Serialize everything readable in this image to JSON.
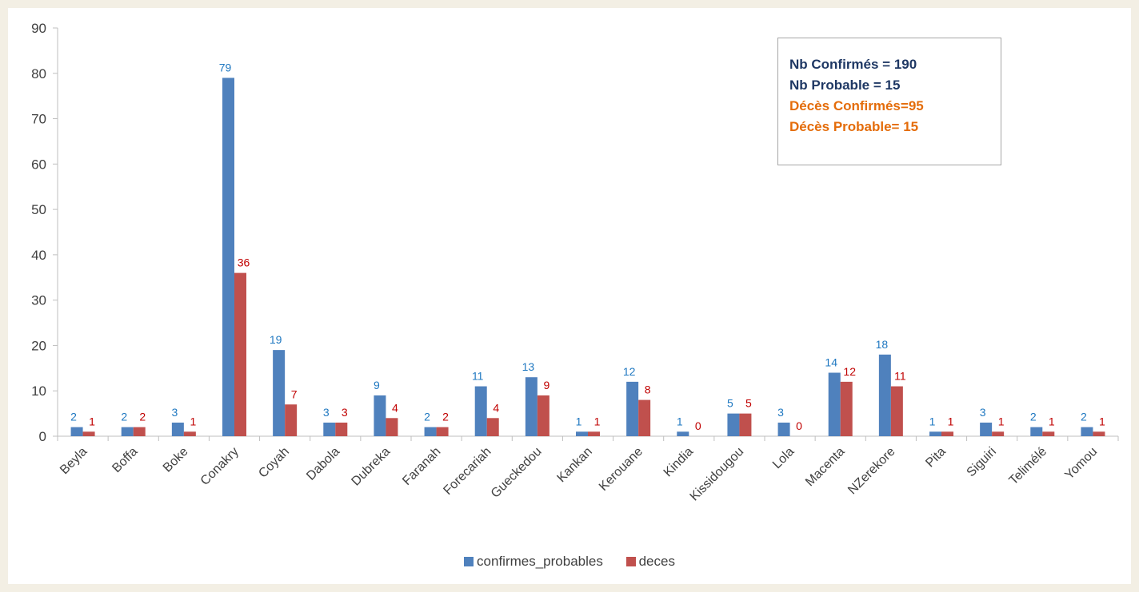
{
  "chart_data": {
    "type": "bar",
    "title": "",
    "xlabel": "",
    "ylabel": "",
    "ylim": [
      0,
      90
    ],
    "yticks": [
      0,
      10,
      20,
      30,
      40,
      50,
      60,
      70,
      80,
      90
    ],
    "grid": false,
    "legend_position": "bottom",
    "categories": [
      "Beyla",
      "Boffa",
      "Boke",
      "Conakry",
      "Coyah",
      "Dabola",
      "Dubreka",
      "Faranah",
      "Forecariah",
      "Gueckedou",
      "Kankan",
      "Kerouane",
      "Kindia",
      "Kissidougou",
      "Lola",
      "Macenta",
      "NZerekore",
      "Pita",
      "Siguiri",
      "Telimélé",
      "Yomou"
    ],
    "series": [
      {
        "name": "confirmes_probables",
        "color": "#4f81bd",
        "label_color": "#1f78c1",
        "values": [
          2,
          2,
          3,
          79,
          19,
          3,
          9,
          2,
          11,
          13,
          1,
          12,
          1,
          5,
          3,
          14,
          18,
          1,
          3,
          2,
          2
        ]
      },
      {
        "name": "deces",
        "color": "#c0504d",
        "label_color": "#c00000",
        "values": [
          1,
          2,
          1,
          36,
          7,
          3,
          4,
          2,
          4,
          9,
          1,
          8,
          0,
          5,
          0,
          12,
          11,
          1,
          1,
          1,
          1
        ]
      }
    ]
  },
  "infobox": {
    "lines": [
      {
        "text": "Nb Confirmés = 190",
        "color": "#1f3864"
      },
      {
        "text": "Nb Probable = 15",
        "color": "#1f3864"
      },
      {
        "text": "Décès Confirmés=95",
        "color": "#e46c0a"
      },
      {
        "text": "Décès Probable= 15",
        "color": "#e46c0a"
      }
    ]
  }
}
